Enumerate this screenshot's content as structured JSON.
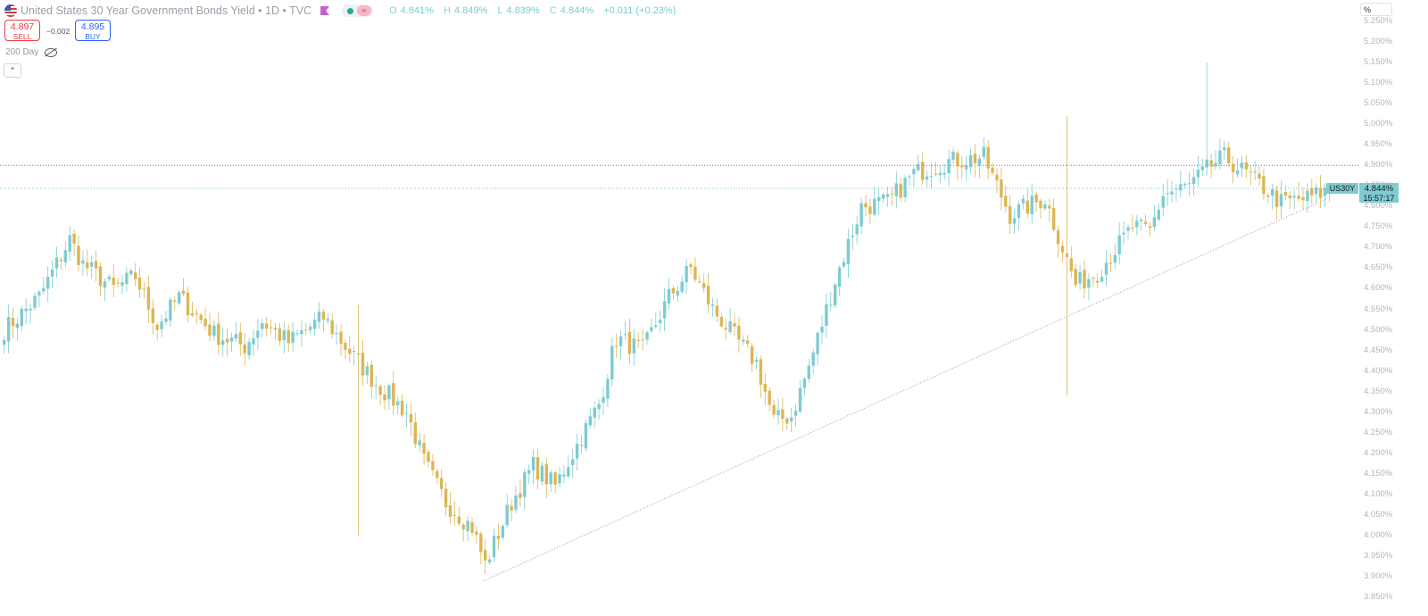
{
  "legend": {
    "title": "United States 30 Year Government Bonds Yield • 1D • TVC",
    "flag_icon": "us-flag-icon",
    "ohlc": {
      "o_label": "O",
      "o": "4.841%",
      "h_label": "H",
      "h": "4.849%",
      "l_label": "L",
      "l": "4.839%",
      "c_label": "C",
      "c": "4.844%",
      "change": "+0.011 (+0.23%)"
    },
    "status_icon_glyph": "≈"
  },
  "trade": {
    "sell_price": "4.897",
    "sell_label": "SELL",
    "spread": "−0.002",
    "buy_price": "4.895",
    "buy_label": "BUY"
  },
  "indicator": {
    "label": "200 Day"
  },
  "collapse_glyph": "⌃",
  "unit_label": "%",
  "current": {
    "symbol": "US30Y",
    "price": "4.844%",
    "countdown": "15:57:17"
  },
  "colors": {
    "up": "#7ecbd0",
    "down": "#dcb654",
    "horizontal_line": "#a64ca6",
    "last_price_line": "#7ecbd0",
    "trendline": "#9598a1"
  },
  "chart_data": {
    "type": "candlestick",
    "title": "United States 30 Year Government Bonds Yield",
    "ylabel": "%",
    "ylim": [
      3.85,
      5.25
    ],
    "y_ticks": [
      "5.250%",
      "5.200%",
      "5.150%",
      "5.100%",
      "5.050%",
      "5.000%",
      "4.950%",
      "4.900%",
      "4.850%",
      "4.800%",
      "4.750%",
      "4.700%",
      "4.650%",
      "4.600%",
      "4.550%",
      "4.500%",
      "4.450%",
      "4.400%",
      "4.350%",
      "4.300%",
      "4.250%",
      "4.200%",
      "4.150%",
      "4.100%",
      "4.050%",
      "4.000%",
      "3.950%",
      "3.900%",
      "3.850%"
    ],
    "horizontal_line": 4.9,
    "last_price": 4.844,
    "trendline": {
      "from": {
        "bar": 110,
        "value": 3.89
      },
      "to": {
        "bar": 303,
        "value": 4.82
      }
    },
    "close_path": [
      [
        0,
        4.5
      ],
      [
        8,
        4.58
      ],
      [
        15,
        4.72
      ],
      [
        18,
        4.66
      ],
      [
        25,
        4.6
      ],
      [
        30,
        4.63
      ],
      [
        35,
        4.51
      ],
      [
        40,
        4.58
      ],
      [
        48,
        4.49
      ],
      [
        55,
        4.46
      ],
      [
        59,
        4.52
      ],
      [
        65,
        4.47
      ],
      [
        73,
        4.53
      ],
      [
        78,
        4.46
      ],
      [
        85,
        4.37
      ],
      [
        92,
        4.3
      ],
      [
        96,
        4.18
      ],
      [
        101,
        4.08
      ],
      [
        107,
        4.02
      ],
      [
        110,
        3.93
      ],
      [
        116,
        4.08
      ],
      [
        121,
        4.17
      ],
      [
        126,
        4.12
      ],
      [
        131,
        4.22
      ],
      [
        136,
        4.32
      ],
      [
        140,
        4.48
      ],
      [
        146,
        4.45
      ],
      [
        152,
        4.58
      ],
      [
        157,
        4.65
      ],
      [
        162,
        4.55
      ],
      [
        168,
        4.47
      ],
      [
        172,
        4.42
      ],
      [
        176,
        4.28
      ],
      [
        180,
        4.29
      ],
      [
        184,
        4.41
      ],
      [
        190,
        4.62
      ],
      [
        196,
        4.8
      ],
      [
        202,
        4.81
      ],
      [
        208,
        4.88
      ],
      [
        216,
        4.91
      ],
      [
        224,
        4.92
      ],
      [
        230,
        4.78
      ],
      [
        238,
        4.82
      ],
      [
        245,
        4.61
      ],
      [
        250,
        4.64
      ],
      [
        258,
        4.75
      ],
      [
        262,
        4.74
      ],
      [
        265,
        4.83
      ],
      [
        271,
        4.85
      ],
      [
        276,
        4.9
      ],
      [
        279,
        4.92
      ],
      [
        284,
        4.88
      ],
      [
        292,
        4.81
      ],
      [
        298,
        4.82
      ],
      [
        303,
        4.84
      ]
    ],
    "wick_spikes": [
      {
        "bar": 81,
        "high": 4.56,
        "low": 4.0
      },
      {
        "bar": 243,
        "high": 5.02,
        "low": 4.34
      },
      {
        "bar": 275,
        "high": 5.15,
        "low": 4.88
      }
    ]
  }
}
